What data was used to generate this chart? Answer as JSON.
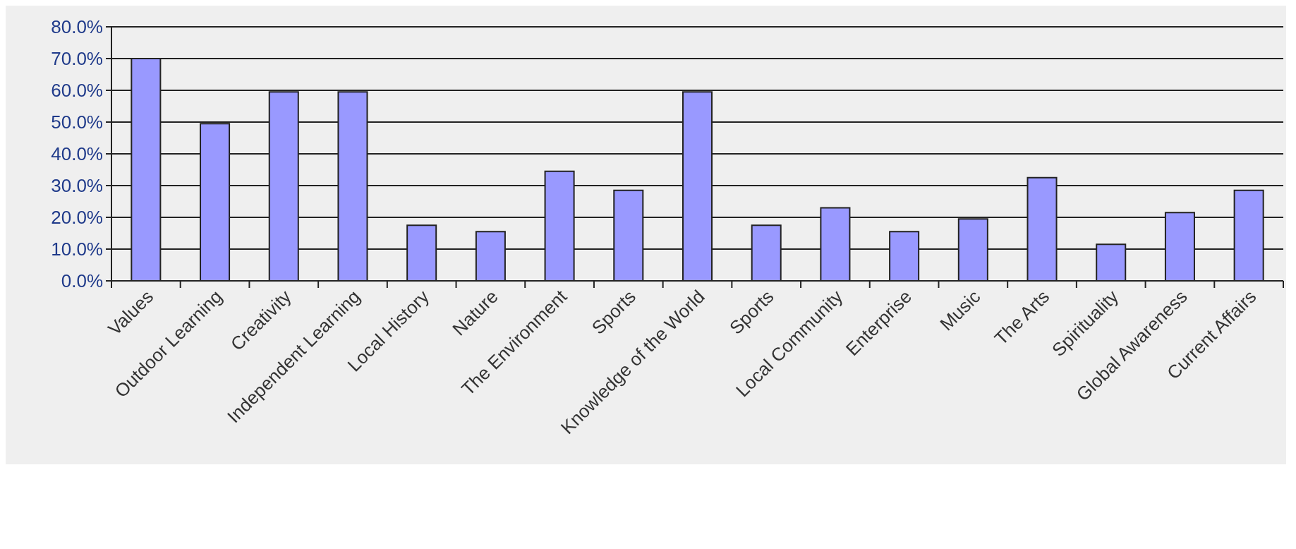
{
  "chart_data": {
    "type": "bar",
    "categories": [
      "Values",
      "Outdoor Learning",
      "Creativity",
      "Independent Learning",
      "Local History",
      "Nature",
      "The Environment",
      "Sports",
      "Knowledge of the World",
      "Sports",
      "Local Community",
      "Enterprise",
      "Music",
      "The Arts",
      "Spirituality",
      "Global Awareness",
      "Current Affairs"
    ],
    "values": [
      70,
      49.5,
      59.5,
      59.5,
      17.5,
      15.5,
      34.5,
      28.5,
      59.5,
      17.5,
      23,
      15.5,
      19.5,
      32.5,
      11.5,
      21.5,
      28.5
    ],
    "color": "#9999ff",
    "ylim": [
      0,
      80
    ],
    "yticks": [
      {
        "value": 0,
        "label": "0.0%"
      },
      {
        "value": 10,
        "label": "10.0%"
      },
      {
        "value": 20,
        "label": "20.0%"
      },
      {
        "value": 30,
        "label": "30.0%"
      },
      {
        "value": 40,
        "label": "40.0%"
      },
      {
        "value": 50,
        "label": "50.0%"
      },
      {
        "value": 60,
        "label": "60.0%"
      },
      {
        "value": 70,
        "label": "70.0%"
      },
      {
        "value": 80,
        "label": "80.0%"
      }
    ],
    "grid": "y"
  }
}
